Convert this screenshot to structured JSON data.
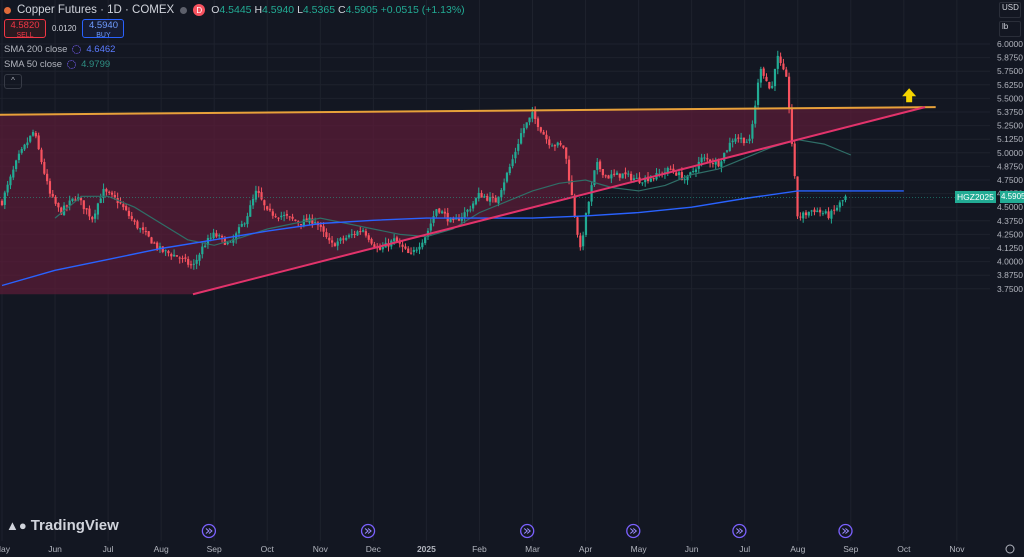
{
  "header": {
    "title": "Copper Futures · 1D · COMEX",
    "open_label": "O",
    "open": "4.5445",
    "high_label": "H",
    "high": "4.5940",
    "low_label": "L",
    "low": "4.5365",
    "close_label": "C",
    "close": "4.5905",
    "change": "+0.0515 (+1.13%)",
    "badge": "D"
  },
  "trade": {
    "sell_price": "4.5820",
    "sell_label": "SELL",
    "spread": "0.0120",
    "buy_price": "4.5940",
    "buy_label": "BUY"
  },
  "indicators": {
    "sma200_label": "SMA 200 close",
    "sma200_value": "4.6462",
    "sma50_label": "SMA 50 close",
    "sma50_value": "4.9799",
    "collapse_glyph": "^"
  },
  "top_right": {
    "currency": "USD",
    "unit": "lb"
  },
  "price_labels": {
    "symbol": "HGZ2025",
    "last": "4.5905"
  },
  "logo": {
    "text": "TradingView"
  },
  "colors": {
    "up": "#22ab94",
    "down": "#f7525f",
    "sma200": "#2962ff",
    "sma50": "#2f6e67",
    "wedge_fill": "#5a1c37",
    "upper_line": "#e8a13a",
    "lower_line": "#e2336b",
    "arrow": "#f5d400",
    "background": "#131722"
  },
  "chart_data": {
    "type": "candlestick",
    "title": "Copper Futures · 1D · COMEX",
    "y_axis": {
      "ticks": [
        "6.0000",
        "5.8750",
        "5.7500",
        "5.6250",
        "5.5000",
        "5.3750",
        "5.2500",
        "5.1250",
        "5.0000",
        "4.8750",
        "4.7500",
        "4.6250",
        "4.5000",
        "4.3750",
        "4.2500",
        "4.1250",
        "4.0000",
        "3.8750",
        "3.7500"
      ],
      "range": [
        3.72,
        6.04
      ]
    },
    "x_axis": {
      "ticks": [
        "May",
        "Jun",
        "Jul",
        "Aug",
        "Sep",
        "Oct",
        "Nov",
        "Dec",
        "2025",
        "Feb",
        "Mar",
        "Apr",
        "May",
        "Jun",
        "Jul",
        "Aug",
        "Sep",
        "Oct",
        "Nov"
      ],
      "months_from_may_2024": [
        0,
        1,
        2,
        3,
        4,
        5,
        6,
        7,
        8,
        9,
        10,
        11,
        12,
        13,
        14,
        15,
        16,
        17,
        18
      ]
    },
    "last_price": 4.5905,
    "price_path_months": [
      0,
      0.3,
      0.6,
      0.9,
      1.1,
      1.4,
      1.7,
      1.9,
      2.2,
      2.5,
      2.8,
      3.0,
      3.3,
      3.6,
      3.8,
      4.0,
      4.3,
      4.6,
      4.8,
      5.0,
      5.3,
      5.6,
      5.9,
      6.2,
      6.5,
      6.8,
      7.1,
      7.4,
      7.7,
      8.0,
      8.2,
      8.5,
      8.8,
      9.0,
      9.3,
      9.6,
      9.8,
      10.0,
      10.3,
      10.6,
      10.9,
      11.0,
      11.2,
      11.4,
      11.7,
      12.0,
      12.3,
      12.6,
      12.9,
      13.2,
      13.5,
      13.8,
      14.1,
      14.3,
      14.5,
      14.6,
      14.8,
      15.0,
      15.3,
      15.6,
      15.9
    ],
    "price_path": [
      4.55,
      4.95,
      5.2,
      4.62,
      4.45,
      4.6,
      4.4,
      4.65,
      4.55,
      4.35,
      4.2,
      4.1,
      4.05,
      3.95,
      4.15,
      4.25,
      4.15,
      4.4,
      4.65,
      4.45,
      4.42,
      4.36,
      4.38,
      4.15,
      4.22,
      4.3,
      4.1,
      4.2,
      4.05,
      4.25,
      4.5,
      4.35,
      4.48,
      4.62,
      4.55,
      4.9,
      5.2,
      5.35,
      5.1,
      5.05,
      4.1,
      4.4,
      4.9,
      4.78,
      4.8,
      4.75,
      4.78,
      4.85,
      4.75,
      4.95,
      4.9,
      5.15,
      5.1,
      5.8,
      5.55,
      5.9,
      5.65,
      4.4,
      4.48,
      4.42,
      4.59
    ],
    "sma200_months": [
      0,
      1,
      2,
      3,
      4,
      5,
      6,
      7,
      8,
      9,
      10,
      11,
      12,
      13,
      14,
      15,
      16,
      17
    ],
    "sma200": [
      3.78,
      3.92,
      4.02,
      4.12,
      4.2,
      4.28,
      4.35,
      4.38,
      4.4,
      4.4,
      4.4,
      4.42,
      4.45,
      4.5,
      4.58,
      4.65,
      4.65,
      4.65
    ],
    "sma50_months": [
      1,
      1.5,
      2,
      2.5,
      3,
      3.5,
      4,
      4.5,
      5,
      5.5,
      6,
      6.5,
      7,
      7.5,
      8,
      8.5,
      9,
      9.5,
      10,
      10.5,
      11,
      11.5,
      12,
      12.5,
      13,
      13.5,
      14,
      14.5,
      15,
      15.5,
      16
    ],
    "sma50": [
      4.4,
      4.6,
      4.6,
      4.5,
      4.35,
      4.2,
      4.15,
      4.22,
      4.3,
      4.35,
      4.4,
      4.35,
      4.3,
      4.25,
      4.23,
      4.3,
      4.45,
      4.55,
      4.65,
      4.72,
      4.75,
      4.68,
      4.65,
      4.7,
      4.8,
      4.85,
      4.95,
      5.05,
      5.12,
      5.08,
      4.98
    ],
    "wedge": {
      "upper_line": {
        "from_month": -0.2,
        "from_price": 5.35,
        "to_month": 17.6,
        "to_price": 5.42
      },
      "lower_line": {
        "from_month": 3.6,
        "from_price": 3.7,
        "to_month": 17.4,
        "to_price": 5.42
      }
    },
    "event_markers_months": [
      3.9,
      6.9,
      9.9,
      11.9,
      13.9,
      15.9
    ]
  }
}
